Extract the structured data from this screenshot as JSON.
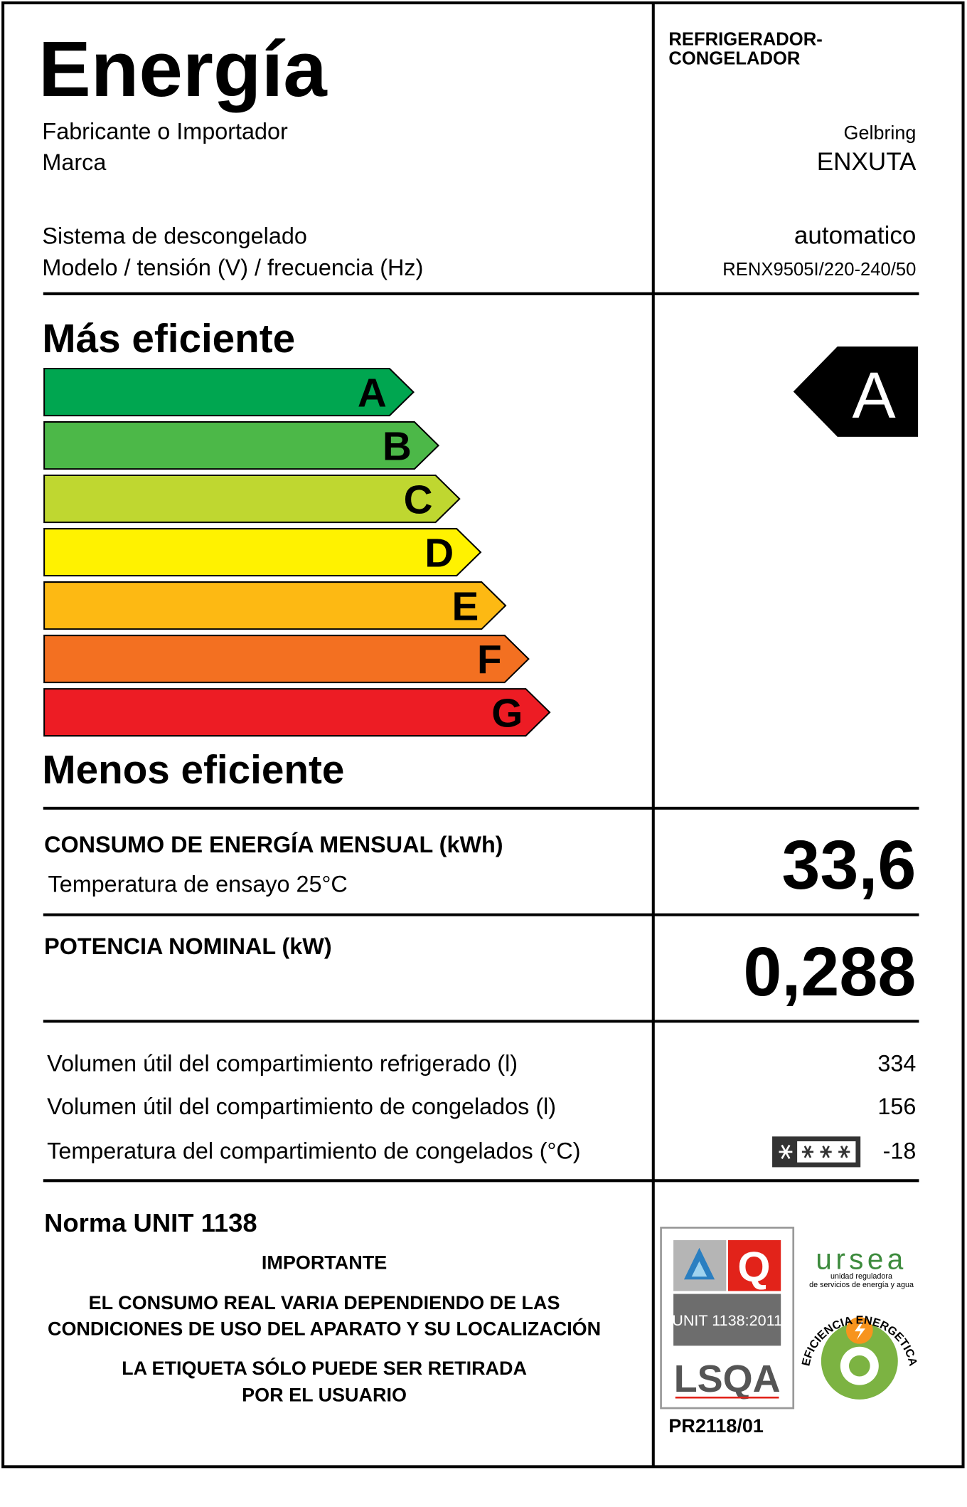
{
  "header": {
    "title": "Energía",
    "category": [
      "REFRIGERADOR-",
      "CONGELADOR"
    ]
  },
  "info": [
    {
      "label": "Fabricante o Importador",
      "value": "Gelbring"
    },
    {
      "label": "Marca",
      "value": "ENXUTA"
    },
    {
      "label": "Sistema de descongelado",
      "value": "automatico"
    },
    {
      "label": "Modelo / tensión (V) / frecuencia (Hz)",
      "value": "RENX9505I/220-240/50"
    }
  ],
  "scale": {
    "top": "Más eficiente",
    "bottom": "Menos eficiente",
    "classes": [
      {
        "letter": "A",
        "color": "#00a650"
      },
      {
        "letter": "B",
        "color": "#4cb848"
      },
      {
        "letter": "C",
        "color": "#bfd730"
      },
      {
        "letter": "D",
        "color": "#fff200"
      },
      {
        "letter": "E",
        "color": "#fdb913"
      },
      {
        "letter": "F",
        "color": "#f37021"
      },
      {
        "letter": "G",
        "color": "#ed1c24"
      }
    ],
    "rating": "A"
  },
  "consumption": {
    "label": "CONSUMO DE ENERGÍA MENSUAL (kWh)",
    "sublabel": "Temperatura de ensayo 25°C",
    "value": "33,6"
  },
  "power": {
    "label": "POTENCIA NOMINAL (kW)",
    "value": "0,288"
  },
  "volumes": [
    {
      "label": "Volumen útil del compartimiento refrigerado (l)",
      "value": "334"
    },
    {
      "label": "Volumen útil del compartimiento de congelados (l)",
      "value": "156"
    },
    {
      "label": "Temperatura del compartimiento de congelados (°C)",
      "value": "-18"
    }
  ],
  "footer": {
    "norm": "Norma UNIT 1138",
    "important": "IMPORTANTE",
    "notes": [
      [
        "EL CONSUMO REAL VARIA DEPENDIENDO DE LAS",
        "CONDICIONES DE USO DEL APARATO Y SU LOCALIZACIÓN"
      ],
      [
        "LA ETIQUETA SÓLO PUEDE SER RETIRADA",
        "POR EL USUARIO"
      ]
    ]
  },
  "certification": {
    "standard": "UNIT 1138:2011",
    "lab": "LSQA",
    "code": "PR2118/01",
    "agency": "ursea",
    "agency_subtitle": [
      "unidad reguladora",
      "de servicios de energía y agua"
    ],
    "seal": "EFICIENCIA ENERGETICA"
  }
}
